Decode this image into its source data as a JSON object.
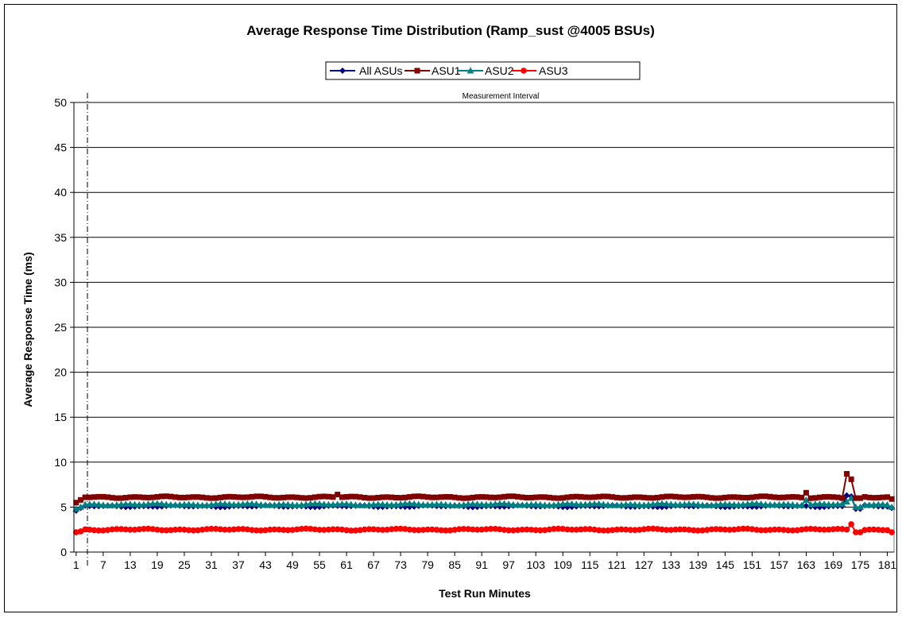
{
  "chart_data": {
    "type": "line",
    "title": "Average Response Time Distribution (Ramp_sust @4005 BSUs)",
    "xlabel": "Test Run Minutes",
    "ylabel": "Average Response Time (ms)",
    "ylim": [
      0,
      50
    ],
    "yticks": [
      0,
      5,
      10,
      15,
      20,
      25,
      30,
      35,
      40,
      45,
      50
    ],
    "xlim": [
      1,
      182
    ],
    "xtick_labels": [
      1,
      7,
      13,
      19,
      25,
      31,
      37,
      43,
      49,
      55,
      61,
      67,
      73,
      79,
      85,
      91,
      97,
      103,
      109,
      115,
      121,
      127,
      133,
      139,
      145,
      151,
      157,
      163,
      169,
      175,
      181
    ],
    "grid": "horizontal",
    "legend_position": "top-center",
    "annotation": {
      "label": "Measurement Interval",
      "x": 3.5
    },
    "series": [
      {
        "name": "All ASUs",
        "color": "#000080",
        "marker": "diamond",
        "baseline": 5.1,
        "points": [
          [
            1,
            4.6
          ],
          [
            2,
            4.9
          ],
          [
            172,
            6.3
          ],
          [
            173,
            6.2
          ],
          [
            174,
            4.8
          ],
          [
            175,
            4.8
          ],
          [
            182,
            4.9
          ]
        ]
      },
      {
        "name": "ASU1",
        "color": "#800000",
        "marker": "square",
        "baseline": 6.1,
        "points": [
          [
            1,
            5.5
          ],
          [
            2,
            5.8
          ],
          [
            59,
            6.4
          ],
          [
            163,
            6.6
          ],
          [
            171,
            6.0
          ],
          [
            172,
            8.7
          ],
          [
            173,
            8.1
          ],
          [
            174,
            6.0
          ],
          [
            175,
            6.0
          ],
          [
            182,
            5.9
          ]
        ]
      },
      {
        "name": "ASU2",
        "color": "#008080",
        "marker": "triangle",
        "baseline": 5.3,
        "points": [
          [
            1,
            4.8
          ],
          [
            2,
            5.0
          ],
          [
            163,
            5.8
          ],
          [
            172,
            5.6
          ],
          [
            173,
            6.0
          ],
          [
            174,
            5.0
          ],
          [
            175,
            5.0
          ],
          [
            182,
            5.0
          ]
        ]
      },
      {
        "name": "ASU3",
        "color": "#ff0000",
        "marker": "circle",
        "baseline": 2.5,
        "points": [
          [
            1,
            2.2
          ],
          [
            2,
            2.3
          ],
          [
            172,
            2.5
          ],
          [
            173,
            3.1
          ],
          [
            174,
            2.2
          ],
          [
            175,
            2.2
          ],
          [
            182,
            2.2
          ]
        ]
      }
    ]
  }
}
